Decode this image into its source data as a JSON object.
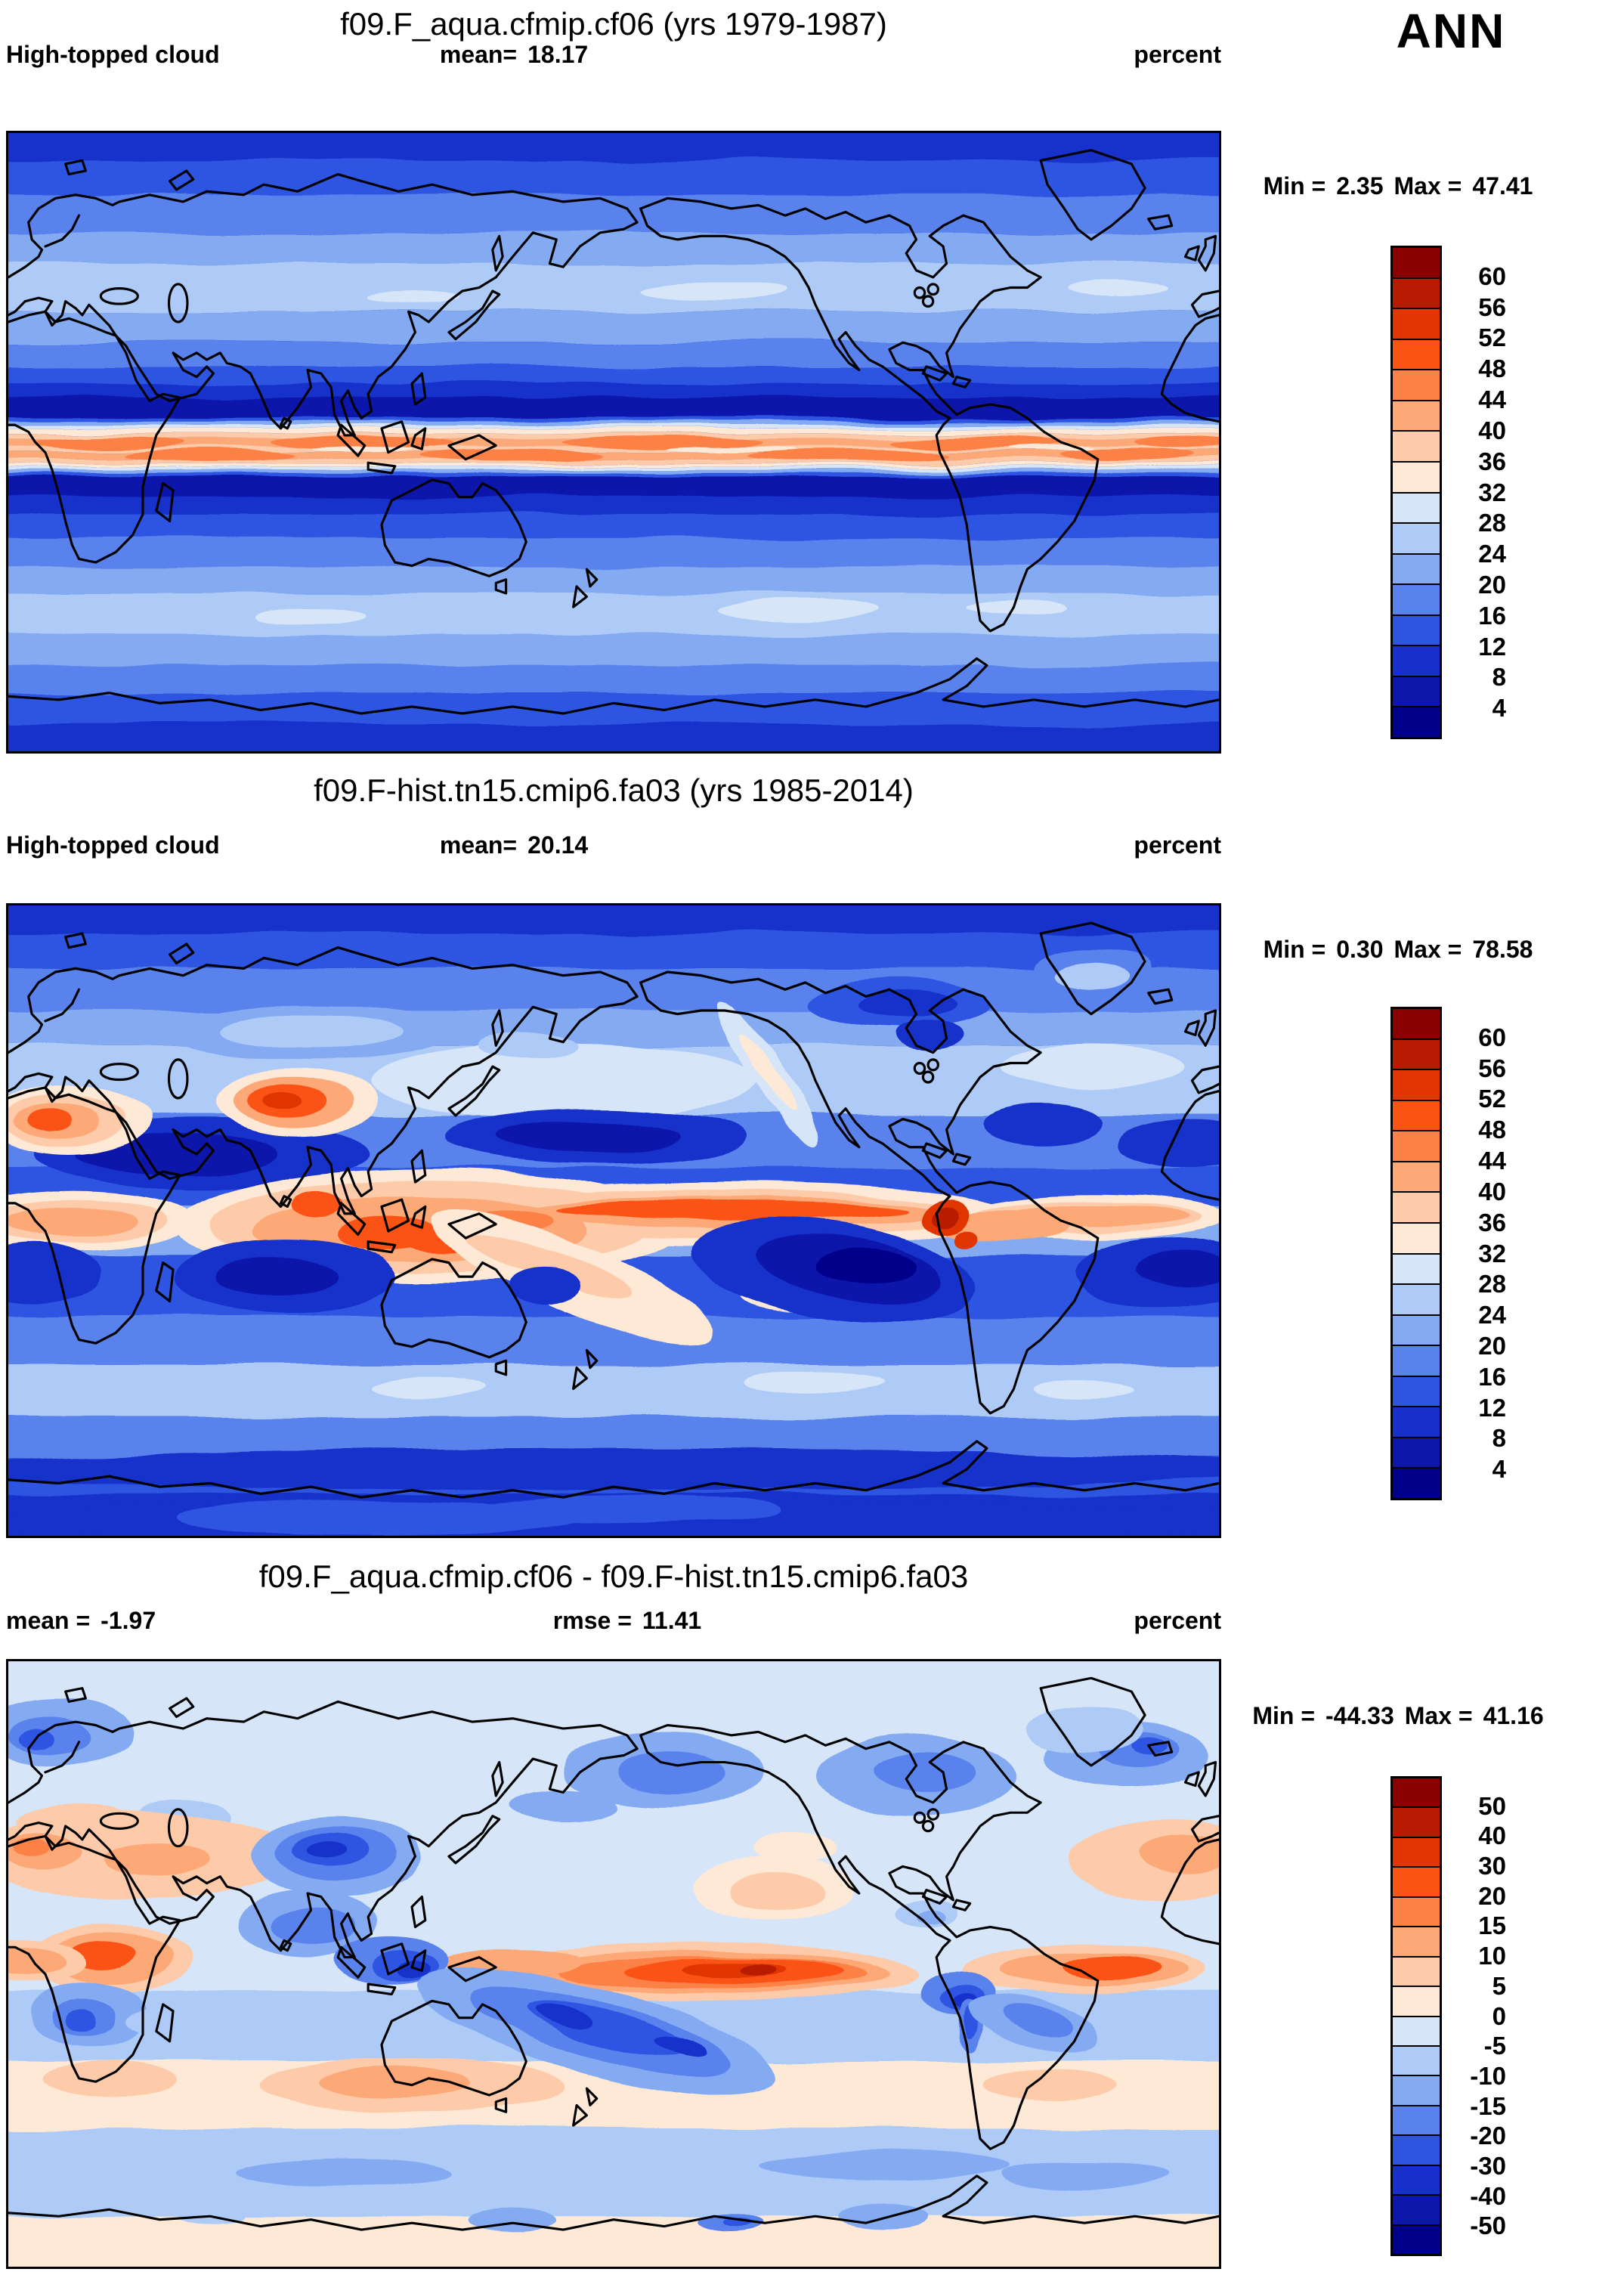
{
  "season_label": "ANN",
  "accent_colors": {
    "map_outline": "#000000",
    "background": "#ffffff"
  },
  "palette_top_to_bottom": [
    "#8b0000",
    "#b71b01",
    "#e13502",
    "#fb5312",
    "#fb8146",
    "#fda877",
    "#fdcbaa",
    "#fee9d7",
    "#d6e5f8",
    "#adcbf6",
    "#84abf2",
    "#5a82ec",
    "#2e54e2",
    "#1730cb",
    "#0d17ab",
    "#00008b"
  ],
  "panels": [
    {
      "title": "f09.F_aqua.cfmip.cf06 (yrs 1979-1987)",
      "variable": "High-topped cloud",
      "mean_label": "mean=",
      "mean_value": "18.17",
      "units": "percent",
      "min_label": "Min =",
      "min_value": "2.35",
      "max_label": "Max =",
      "max_value": "47.41",
      "colorbar": {
        "tick_labels": [
          "60",
          "56",
          "52",
          "48",
          "44",
          "40",
          "36",
          "32",
          "28",
          "24",
          "20",
          "16",
          "12",
          "8",
          "4"
        ],
        "colors": [
          "#8b0000",
          "#b71b01",
          "#e13502",
          "#fb5312",
          "#fb8146",
          "#fda877",
          "#fdcbaa",
          "#fee9d7",
          "#d6e5f8",
          "#adcbf6",
          "#84abf2",
          "#5a82ec",
          "#2e54e2",
          "#1730cb",
          "#0d17ab",
          "#00008b"
        ]
      }
    },
    {
      "title": "f09.F-hist.tn15.cmip6.fa03 (yrs 1985-2014)",
      "variable": "High-topped cloud",
      "mean_label": "mean=",
      "mean_value": "20.14",
      "units": "percent",
      "min_label": "Min =",
      "min_value": "0.30",
      "max_label": "Max =",
      "max_value": "78.58",
      "colorbar": {
        "tick_labels": [
          "60",
          "56",
          "52",
          "48",
          "44",
          "40",
          "36",
          "32",
          "28",
          "24",
          "20",
          "16",
          "12",
          "8",
          "4"
        ],
        "colors": [
          "#8b0000",
          "#b71b01",
          "#e13502",
          "#fb5312",
          "#fb8146",
          "#fda877",
          "#fdcbaa",
          "#fee9d7",
          "#d6e5f8",
          "#adcbf6",
          "#84abf2",
          "#5a82ec",
          "#2e54e2",
          "#1730cb",
          "#0d17ab",
          "#00008b"
        ]
      }
    },
    {
      "title": "f09.F_aqua.cfmip.cf06 - f09.F-hist.tn15.cmip6.fa03",
      "mean_label": "mean =",
      "mean_value": "-1.97",
      "rmse_label": "rmse =",
      "rmse_value": "11.41",
      "units": "percent",
      "min_label": "Min =",
      "min_value": "-44.33",
      "max_label": "Max =",
      "max_value": "41.16",
      "colorbar": {
        "tick_labels": [
          "50",
          "40",
          "30",
          "20",
          "15",
          "10",
          "5",
          "0",
          "-5",
          "-10",
          "-15",
          "-20",
          "-30",
          "-40",
          "-50"
        ],
        "colors": [
          "#8b0000",
          "#b71b01",
          "#e13502",
          "#fb5312",
          "#fb8146",
          "#fda877",
          "#fdcbaa",
          "#fee9d7",
          "#d6e5f8",
          "#adcbf6",
          "#84abf2",
          "#5a82ec",
          "#2e54e2",
          "#1730cb",
          "#0d17ab",
          "#00008b"
        ]
      }
    }
  ],
  "chart_data": [
    {
      "type": "heatmap",
      "subtype": "filled_contour_world_map",
      "title": "f09.F_aqua.cfmip.cf06 (yrs 1979-1987)",
      "variable": "High-topped cloud",
      "units": "percent",
      "season": "ANN",
      "projection": "equirectangular",
      "lon_range": [
        0,
        360
      ],
      "lat_range": [
        -90,
        90
      ],
      "stats": {
        "mean": 18.17,
        "min": 2.35,
        "max": 47.41
      },
      "contour_levels": [
        4,
        8,
        12,
        16,
        20,
        24,
        28,
        32,
        36,
        40,
        44,
        48,
        52,
        56,
        60
      ],
      "legend_position": "right",
      "pattern": "zonally symmetric bands (aquaplanet-like); narrow double ITCZ maximum at equator, subtropical minima, secondary mid-latitude maxima",
      "zonal_profile": {
        "lat": [
          90,
          75,
          60,
          50,
          40,
          30,
          20,
          12,
          8,
          5,
          0,
          -5,
          -8,
          -12,
          -20,
          -30,
          -40,
          -50,
          -60,
          -75,
          -90
        ],
        "value": [
          10,
          14,
          20,
          26,
          22,
          14,
          6,
          6,
          20,
          45,
          41,
          45,
          20,
          6,
          6,
          14,
          22,
          26,
          20,
          14,
          10
        ]
      }
    },
    {
      "type": "heatmap",
      "subtype": "filled_contour_world_map",
      "title": "f09.F-hist.tn15.cmip6.fa03 (yrs 1985-2014)",
      "variable": "High-topped cloud",
      "units": "percent",
      "season": "ANN",
      "projection": "equirectangular",
      "lon_range": [
        0,
        360
      ],
      "lat_range": [
        -90,
        90
      ],
      "stats": {
        "mean": 20.14,
        "min": 0.3,
        "max": 78.58
      },
      "contour_levels": [
        4,
        8,
        12,
        16,
        20,
        24,
        28,
        32,
        36,
        40,
        44,
        48,
        52,
        56,
        60
      ],
      "legend_position": "right",
      "features": [
        {
          "name": "Tibetan Plateau maximum",
          "approx_lon_lat": [
            85,
            33
          ],
          "approx_value": 48
        },
        {
          "name": "Maritime Continent / warm-pool maximum",
          "approx_lon_lat": [
            120,
            -4
          ],
          "approx_value": 50
        },
        {
          "name": "Pacific ITCZ band ending at Colombia",
          "approx_lon_lat": [
            215,
            7
          ],
          "approx_value": 46
        },
        {
          "name": "Colombia/Panama dark-red maximum",
          "approx_lon_lat": [
            280,
            6
          ],
          "approx_value": 78
        },
        {
          "name": "West Mediterranean / NW Africa maximum",
          "approx_lon_lat": [
            15,
            29
          ],
          "approx_value": 46
        },
        {
          "name": "Sahara-Arabia subtropical minimum",
          "approx_lon_lat": [
            50,
            19
          ],
          "approx_value": 6
        },
        {
          "name": "Subtropical NE Pacific minimum",
          "approx_lon_lat": [
            175,
            24
          ],
          "approx_value": 5
        },
        {
          "name": "SE Pacific stratocumulus minimum",
          "approx_lon_lat": [
            250,
            -14
          ],
          "approx_value": 3
        },
        {
          "name": "South Atlantic minimum",
          "approx_lon_lat": [
            345,
            -14
          ],
          "approx_value": 5
        },
        {
          "name": "South Indian Ocean minimum",
          "approx_lon_lat": [
            82,
            -16
          ],
          "approx_value": 5
        },
        {
          "name": "Mid-latitude storm-track maxima",
          "approx_lon_lat": [
            200,
            45
          ],
          "approx_value": 30
        }
      ]
    },
    {
      "type": "heatmap",
      "subtype": "filled_contour_difference_map",
      "title": "f09.F_aqua.cfmip.cf06 - f09.F-hist.tn15.cmip6.fa03",
      "variable": "High-topped cloud difference",
      "units": "percent",
      "season": "ANN",
      "projection": "equirectangular",
      "lon_range": [
        0,
        360
      ],
      "lat_range": [
        -90,
        90
      ],
      "stats": {
        "mean": -1.97,
        "rmse": 11.41,
        "min": -44.33,
        "max": 41.16
      },
      "contour_levels": [
        -50,
        -40,
        -30,
        -20,
        -15,
        -10,
        -5,
        0,
        5,
        10,
        15,
        20,
        30,
        40,
        50
      ],
      "legend_position": "right",
      "features": [
        {
          "name": "Equatorial Pacific positive band",
          "approx_lon_lat": [
            215,
            -1
          ],
          "approx_value": 35
        },
        {
          "name": "Equatorial Atlantic / Africa positive band",
          "approx_lon_lat": [
            330,
            -1
          ],
          "approx_value": 25
        },
        {
          "name": "Tibet/China negative anomaly",
          "approx_lon_lat": [
            95,
            33
          ],
          "approx_value": -25
        },
        {
          "name": "Maritime Continent negative anomaly",
          "approx_lon_lat": [
            120,
            -2
          ],
          "approx_value": -30
        },
        {
          "name": "SW Pacific diagonal negative anomaly",
          "approx_lon_lat": [
            175,
            -20
          ],
          "approx_value": -25
        },
        {
          "name": "Colombia/Peru coastal negative anomaly",
          "approx_lon_lat": [
            285,
            -10
          ],
          "approx_value": -44
        },
        {
          "name": "North Africa - Middle East positive band",
          "approx_lon_lat": [
            35,
            33
          ],
          "approx_value": 12
        },
        {
          "name": "Southern mid-latitude weak positive band",
          "approx_lon_lat": [
            180,
            -38
          ],
          "approx_value": 6
        },
        {
          "name": "Southern Ocean weak negative band",
          "approx_lon_lat": [
            180,
            -60
          ],
          "approx_value": -8
        },
        {
          "name": "High-latitude NH weak negative anomalies",
          "approx_lon_lat": [
            20,
            62
          ],
          "approx_value": -12
        }
      ]
    }
  ]
}
